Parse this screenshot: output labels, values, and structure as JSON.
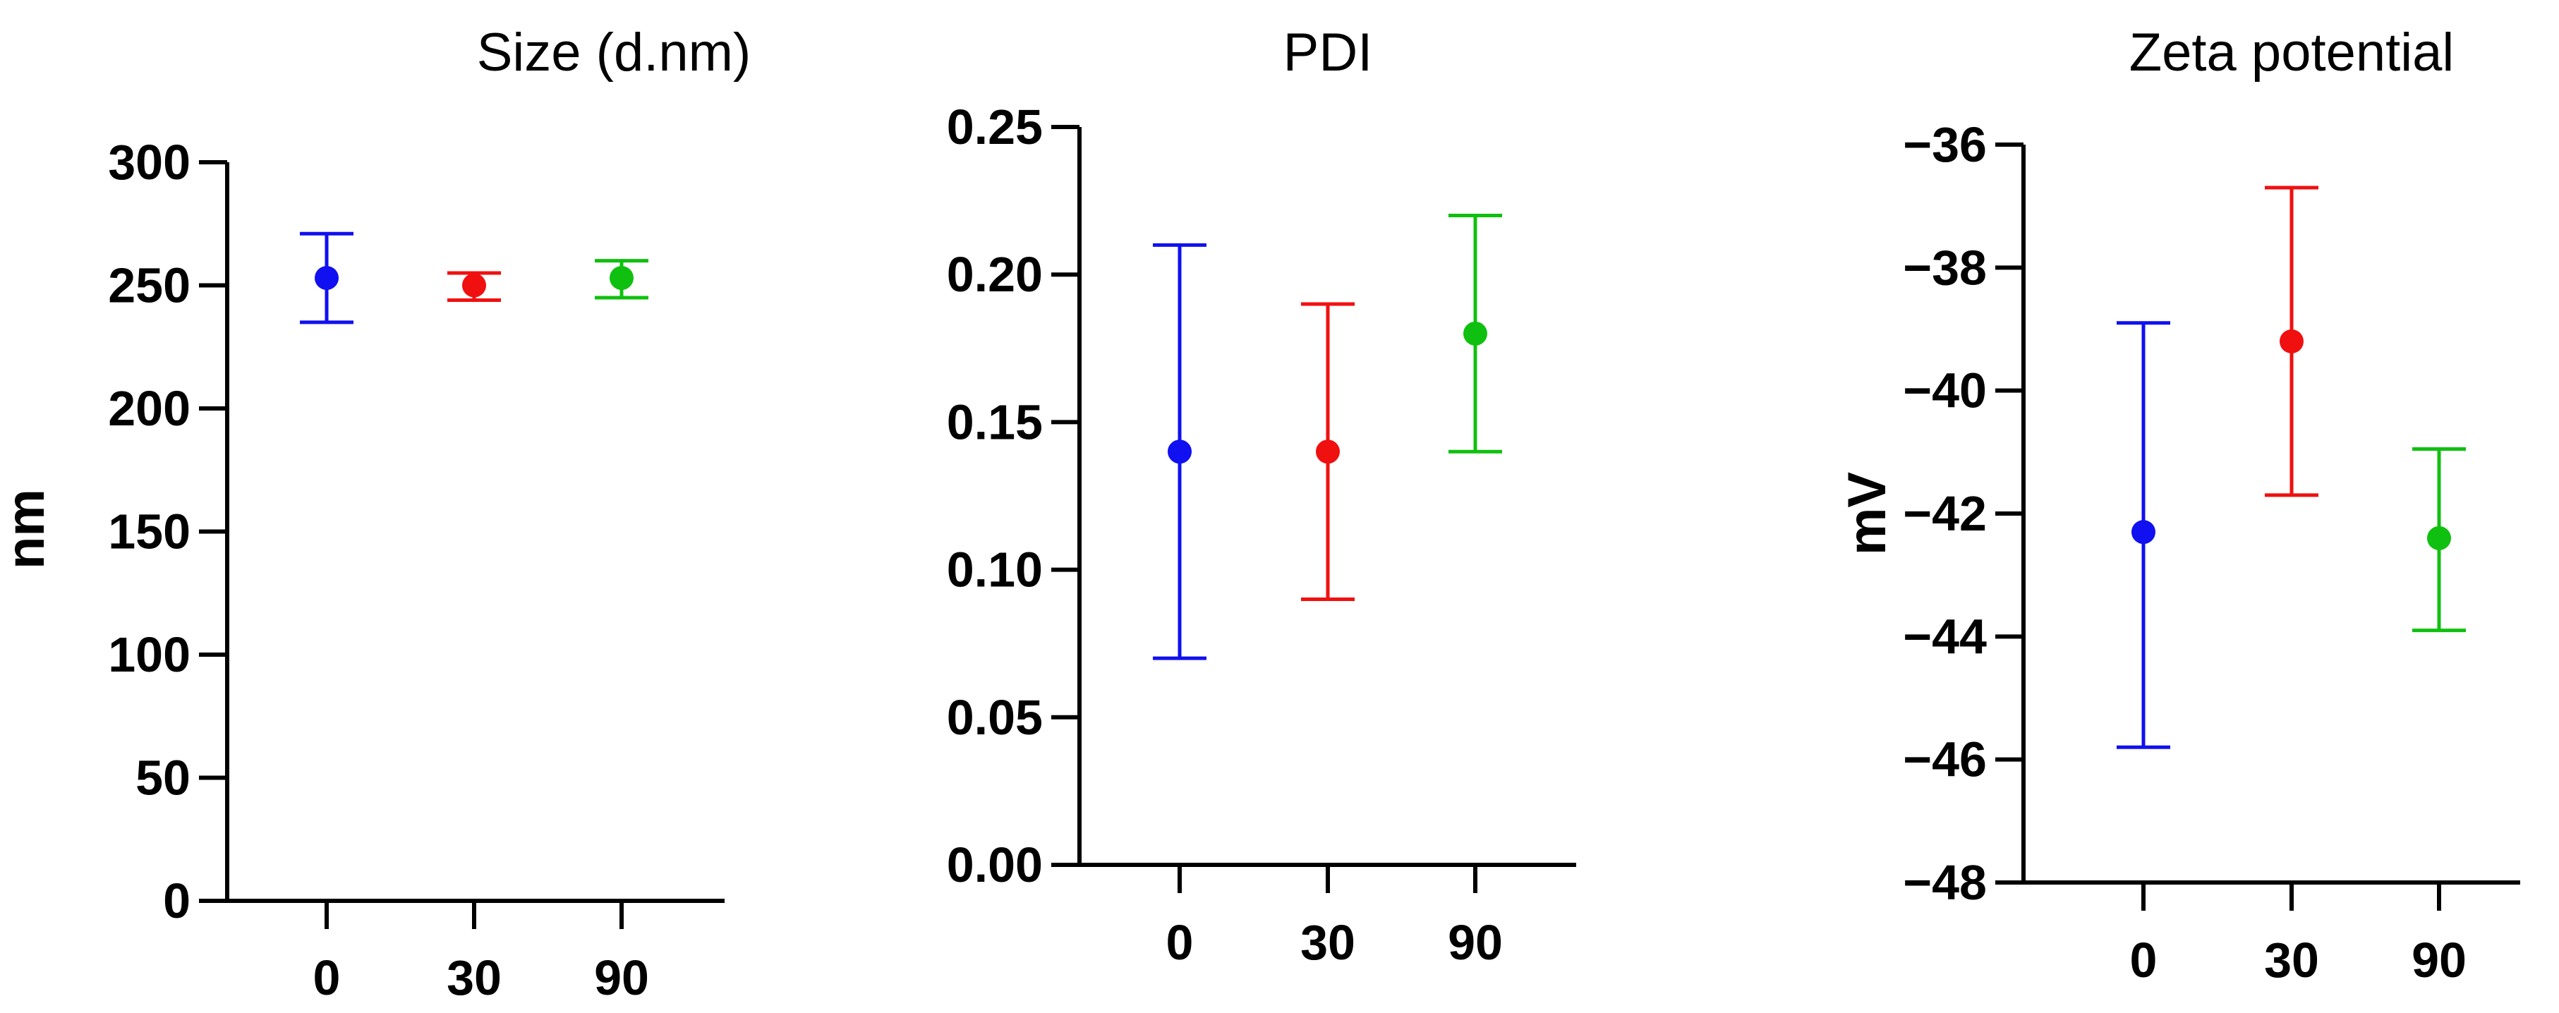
{
  "chart_data": [
    {
      "type": "scatter",
      "title": "Size (d.nm)",
      "xlabel": "",
      "ylabel": "nm",
      "categories": [
        "0",
        "30",
        "90"
      ],
      "values": [
        253,
        250,
        253
      ],
      "err_low": [
        235,
        244,
        245
      ],
      "err_high": [
        271,
        255,
        260
      ],
      "colors": [
        "#1010f0",
        "#f01010",
        "#10c010"
      ],
      "ylim": [
        0,
        300
      ],
      "yticks": [
        0,
        50,
        100,
        150,
        200,
        250,
        300
      ],
      "ytick_labels": [
        "0",
        "50",
        "100",
        "150",
        "200",
        "250",
        "300"
      ],
      "grid": false
    },
    {
      "type": "scatter",
      "title": "PDI",
      "xlabel": "",
      "ylabel": "",
      "categories": [
        "0",
        "30",
        "90"
      ],
      "values": [
        0.14,
        0.14,
        0.18
      ],
      "err_low": [
        0.07,
        0.09,
        0.14
      ],
      "err_high": [
        0.21,
        0.19,
        0.22
      ],
      "colors": [
        "#1010f0",
        "#f01010",
        "#10c010"
      ],
      "ylim": [
        0,
        0.25
      ],
      "yticks": [
        0,
        0.05,
        0.1,
        0.15,
        0.2,
        0.25
      ],
      "ytick_labels": [
        "0.00",
        "0.05",
        "0.10",
        "0.15",
        "0.20",
        "0.25"
      ],
      "grid": false
    },
    {
      "type": "scatter",
      "title": "Zeta potential",
      "xlabel": "",
      "ylabel": "mV",
      "categories": [
        "0",
        "30",
        "90"
      ],
      "values": [
        -42.3,
        -39.2,
        -42.4
      ],
      "err_low": [
        -45.8,
        -41.7,
        -43.9
      ],
      "err_high": [
        -38.9,
        -36.7,
        -40.95
      ],
      "colors": [
        "#1010f0",
        "#f01010",
        "#10c010"
      ],
      "ylim": [
        -48,
        -36
      ],
      "yticks": [
        -48,
        -46,
        -44,
        -42,
        -40,
        -38,
        -36
      ],
      "ytick_labels": [
        "−48",
        "−46",
        "−44",
        "−42",
        "−40",
        "−38",
        "−36"
      ],
      "grid": false
    }
  ]
}
